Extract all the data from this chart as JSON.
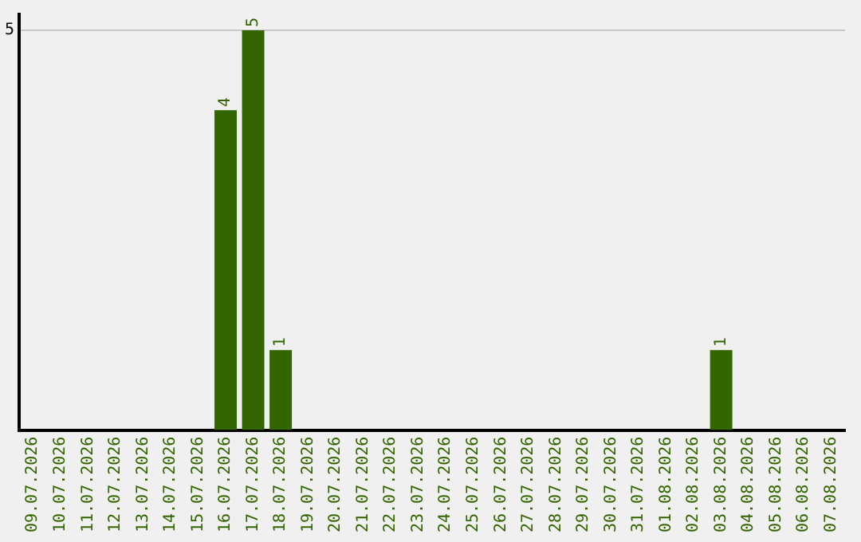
{
  "chart_data": {
    "type": "bar",
    "categories": [
      "09.07.2026",
      "10.07.2026",
      "11.07.2026",
      "12.07.2026",
      "13.07.2026",
      "14.07.2026",
      "15.07.2026",
      "16.07.2026",
      "17.07.2026",
      "18.07.2026",
      "19.07.2026",
      "20.07.2026",
      "21.07.2026",
      "22.07.2026",
      "23.07.2026",
      "24.07.2026",
      "25.07.2026",
      "26.07.2026",
      "27.07.2026",
      "28.07.2026",
      "29.07.2026",
      "30.07.2026",
      "31.07.2026",
      "01.08.2026",
      "02.08.2026",
      "03.08.2026",
      "04.08.2026",
      "05.08.2026",
      "06.08.2026",
      "07.08.2026"
    ],
    "values": [
      0,
      0,
      0,
      0,
      0,
      0,
      0,
      4,
      5,
      1,
      0,
      0,
      0,
      0,
      0,
      0,
      0,
      0,
      0,
      0,
      0,
      0,
      0,
      0,
      0,
      1,
      0,
      0,
      0,
      0
    ],
    "value_labels": [
      null,
      null,
      null,
      null,
      null,
      null,
      null,
      "4",
      "5",
      "1",
      null,
      null,
      null,
      null,
      null,
      null,
      null,
      null,
      null,
      null,
      null,
      null,
      null,
      null,
      null,
      "1",
      null,
      null,
      null,
      null
    ],
    "color": "#336600",
    "ylim": [
      0,
      5.2
    ],
    "yticks": [
      5
    ],
    "grid": "y",
    "legend": false
  }
}
